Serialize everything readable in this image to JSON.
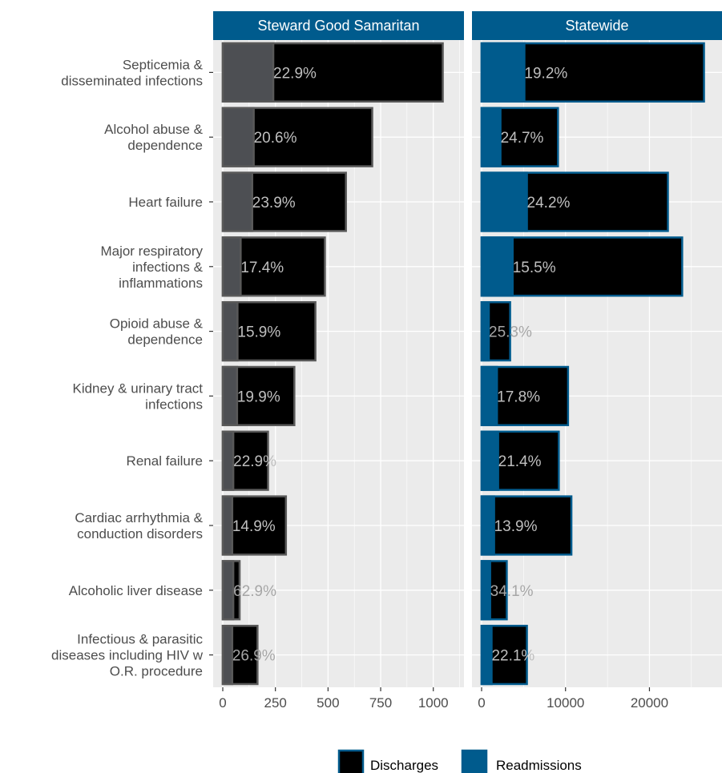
{
  "chart_data": {
    "type": "bar",
    "orientation": "horizontal",
    "categories": [
      [
        "Septicemia &",
        "disseminated infections"
      ],
      [
        "Alcohol abuse &",
        "dependence"
      ],
      [
        "Heart failure"
      ],
      [
        "Major respiratory",
        "infections &",
        "inflammations"
      ],
      [
        "Opioid abuse &",
        "dependence"
      ],
      [
        "Kidney & urinary tract",
        "infections"
      ],
      [
        "Renal failure"
      ],
      [
        "Cardiac arrhythmia &",
        "conduction disorders"
      ],
      [
        "Alcoholic liver disease"
      ],
      [
        "Infectious & parasitic",
        "diseases including HIV w",
        "O.R. procedure"
      ]
    ],
    "panels": [
      {
        "title": "Steward Good Samaritan",
        "xlim": [
          0,
          1100
        ],
        "ticks": [
          0,
          250,
          500,
          750,
          1000
        ],
        "tick_labels": [
          "0",
          "250",
          "500",
          "750",
          "1000"
        ],
        "discharges": [
          1045,
          710,
          585,
          485,
          440,
          340,
          215,
          300,
          80,
          165
        ],
        "readmissions": [
          240,
          147,
          140,
          85,
          70,
          68,
          50,
          45,
          50,
          45
        ],
        "pct_labels": [
          "22.9%",
          "20.6%",
          "23.9%",
          "17.4%",
          "15.9%",
          "19.9%",
          "22.9%",
          "14.9%",
          "62.9%",
          "26.9%"
        ],
        "discharge_color": "#000000",
        "readmission_color": "#4d4f53",
        "outline_color": "#595959"
      },
      {
        "title": "Statewide",
        "xlim": [
          0,
          27500
        ],
        "ticks": [
          0,
          10000,
          20000
        ],
        "tick_labels": [
          "0",
          "10000",
          "20000"
        ],
        "discharges": [
          26500,
          9100,
          22200,
          23900,
          3400,
          10300,
          9200,
          10700,
          3000,
          5400
        ],
        "readmissions": [
          5100,
          2250,
          5400,
          3700,
          860,
          1830,
          1970,
          1490,
          1020,
          1190
        ],
        "pct_labels": [
          "19.2%",
          "24.7%",
          "24.2%",
          "15.5%",
          "25.3%",
          "17.8%",
          "21.4%",
          "13.9%",
          "34.1%",
          "22.1%"
        ],
        "discharge_color": "#000000",
        "readmission_color": "#005b8d",
        "outline_color": "#005b8d"
      }
    ],
    "legend": {
      "position": "bottom",
      "items": [
        {
          "label": "Discharges",
          "color": "#000000",
          "outline": "#005b8d"
        },
        {
          "label": "Readmissions",
          "color": "#005b8d",
          "outline": "#005b8d"
        }
      ]
    },
    "label_color_inside": "#bfbfbf",
    "label_color_outside": "#a6a6a6",
    "panel_background": "#ebebeb",
    "grid_color": "#ffffff",
    "strip_color": "#005b8d",
    "grid": true
  }
}
